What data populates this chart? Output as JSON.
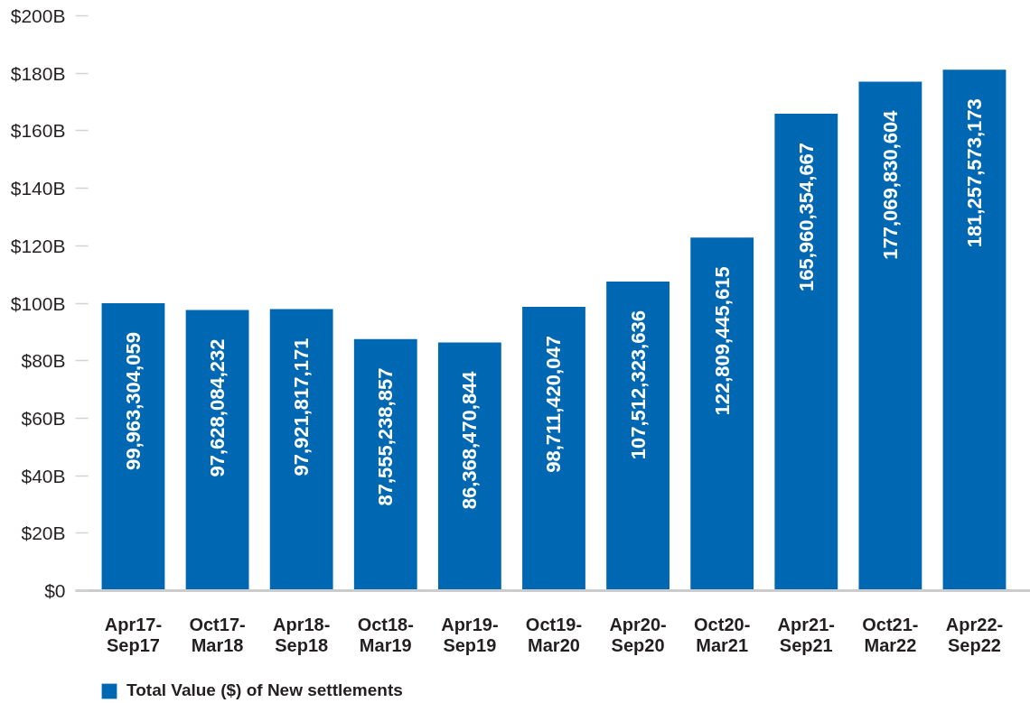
{
  "chart_data": {
    "type": "bar",
    "categories": [
      "Apr17-Sep17",
      "Oct17-Mar18",
      "Apr18-Sep18",
      "Oct18-Mar19",
      "Apr19-Sep19",
      "Oct19-Mar20",
      "Apr20-Sep20",
      "Oct20-Mar21",
      "Apr21-Sep21",
      "Oct21-Mar22",
      "Apr22-Sep22"
    ],
    "series": [
      {
        "name": "Total Value ($) of New settlements",
        "color": "#0068b2",
        "values": [
          99963304059,
          97628084232,
          97921817171,
          87555238857,
          86368470844,
          98711420047,
          107512323636,
          122809445615,
          165960354667,
          177069830604,
          181257573173
        ],
        "value_labels": [
          "99,963,304,059",
          "97,628,084,232",
          "97,921,817,171",
          "87,555,238,857",
          "86,368,470,844",
          "98,711,420,047",
          "107,512,323,636",
          "122,809,445,615",
          "165,960,354,667",
          "177,069,830,604",
          "181,257,573,173"
        ]
      }
    ],
    "ylim": [
      0,
      200000000000
    ],
    "yticks": [
      {
        "value": 0,
        "label": "$0"
      },
      {
        "value": 20000000000,
        "label": "$20B"
      },
      {
        "value": 40000000000,
        "label": "$40B"
      },
      {
        "value": 60000000000,
        "label": "$60B"
      },
      {
        "value": 80000000000,
        "label": "$80B"
      },
      {
        "value": 100000000000,
        "label": "$100B"
      },
      {
        "value": 120000000000,
        "label": "$120B"
      },
      {
        "value": 140000000000,
        "label": "$140B"
      },
      {
        "value": 160000000000,
        "label": "$160B"
      },
      {
        "value": 180000000000,
        "label": "$180B"
      },
      {
        "value": 200000000000,
        "label": "$200B"
      }
    ],
    "legend": "bottom left"
  }
}
